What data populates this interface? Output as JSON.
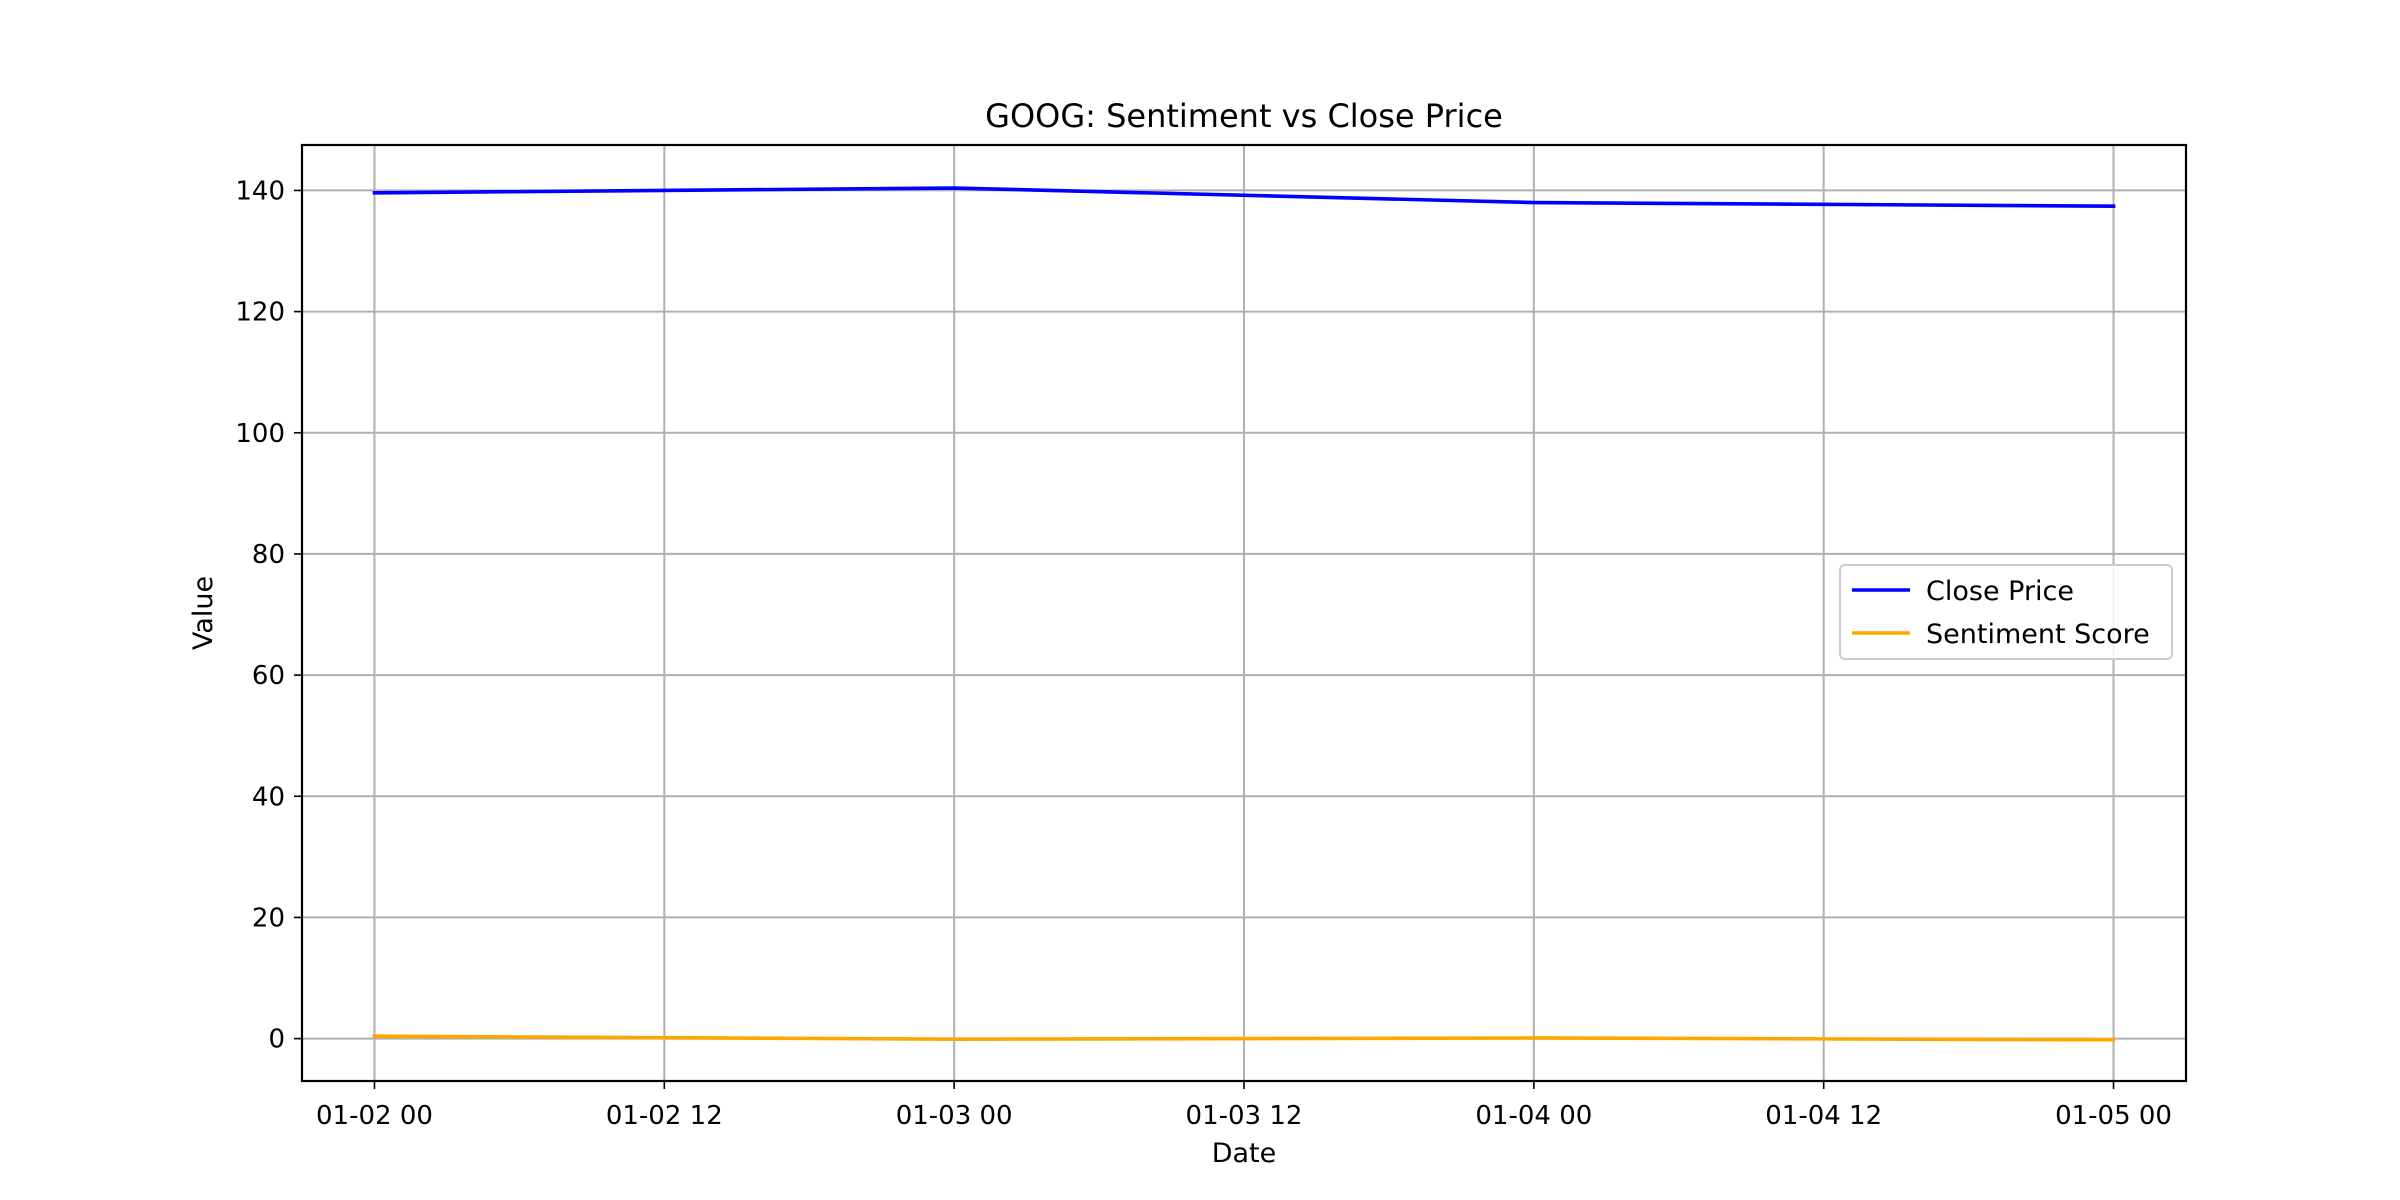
{
  "chart_data": {
    "type": "line",
    "title": "GOOG: Sentiment vs Close Price",
    "xlabel": "Date",
    "ylabel": "Value",
    "x": [
      "01-02 00",
      "01-03 00",
      "01-04 00",
      "01-05 00"
    ],
    "x_ticks": [
      "01-02 00",
      "01-02 12",
      "01-03 00",
      "01-03 12",
      "01-04 00",
      "01-04 12",
      "01-05 00"
    ],
    "y_ticks": [
      0,
      20,
      40,
      60,
      80,
      100,
      120,
      140
    ],
    "ylim": [
      -7,
      147.5
    ],
    "xlim": [
      "01-01 21",
      "01-05 03"
    ],
    "grid": true,
    "legend_position": "center-right",
    "series": [
      {
        "name": "Close Price",
        "color": "#0000ff",
        "values": [
          139.6,
          140.4,
          138.0,
          137.4
        ]
      },
      {
        "name": "Sentiment Score",
        "color": "#ffa500",
        "values": [
          0.4,
          -0.1,
          0.1,
          -0.2
        ]
      }
    ]
  }
}
